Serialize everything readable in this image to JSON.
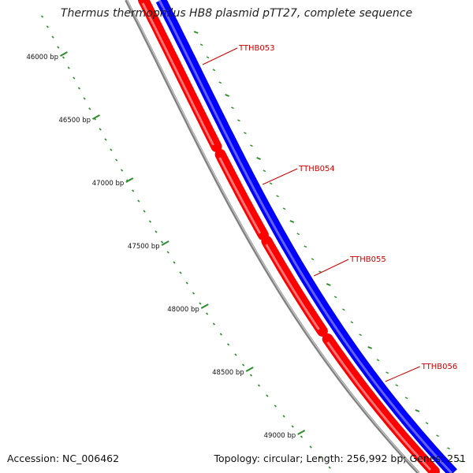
{
  "title": "Thermus thermophilus HB8 plasmid pTT27, complete sequence",
  "footer": {
    "accession": "Accession: NC_006462",
    "summary": "Topology: circular; Length: 256,992 bp; Genes: 251"
  },
  "colors": {
    "forward_strand": "#0000ff",
    "reverse_strand": "#ff0000",
    "backbone": "#808080",
    "ticks": "#2e8b2e",
    "gene_label": "#cc0000"
  },
  "tick_labels": [
    "46000 bp",
    "46500 bp",
    "47000 bp",
    "47500 bp",
    "48000 bp",
    "48500 bp",
    "49000 bp"
  ],
  "genes": [
    "TTHB053",
    "TTHB054",
    "TTHB055",
    "TTHB056"
  ]
}
